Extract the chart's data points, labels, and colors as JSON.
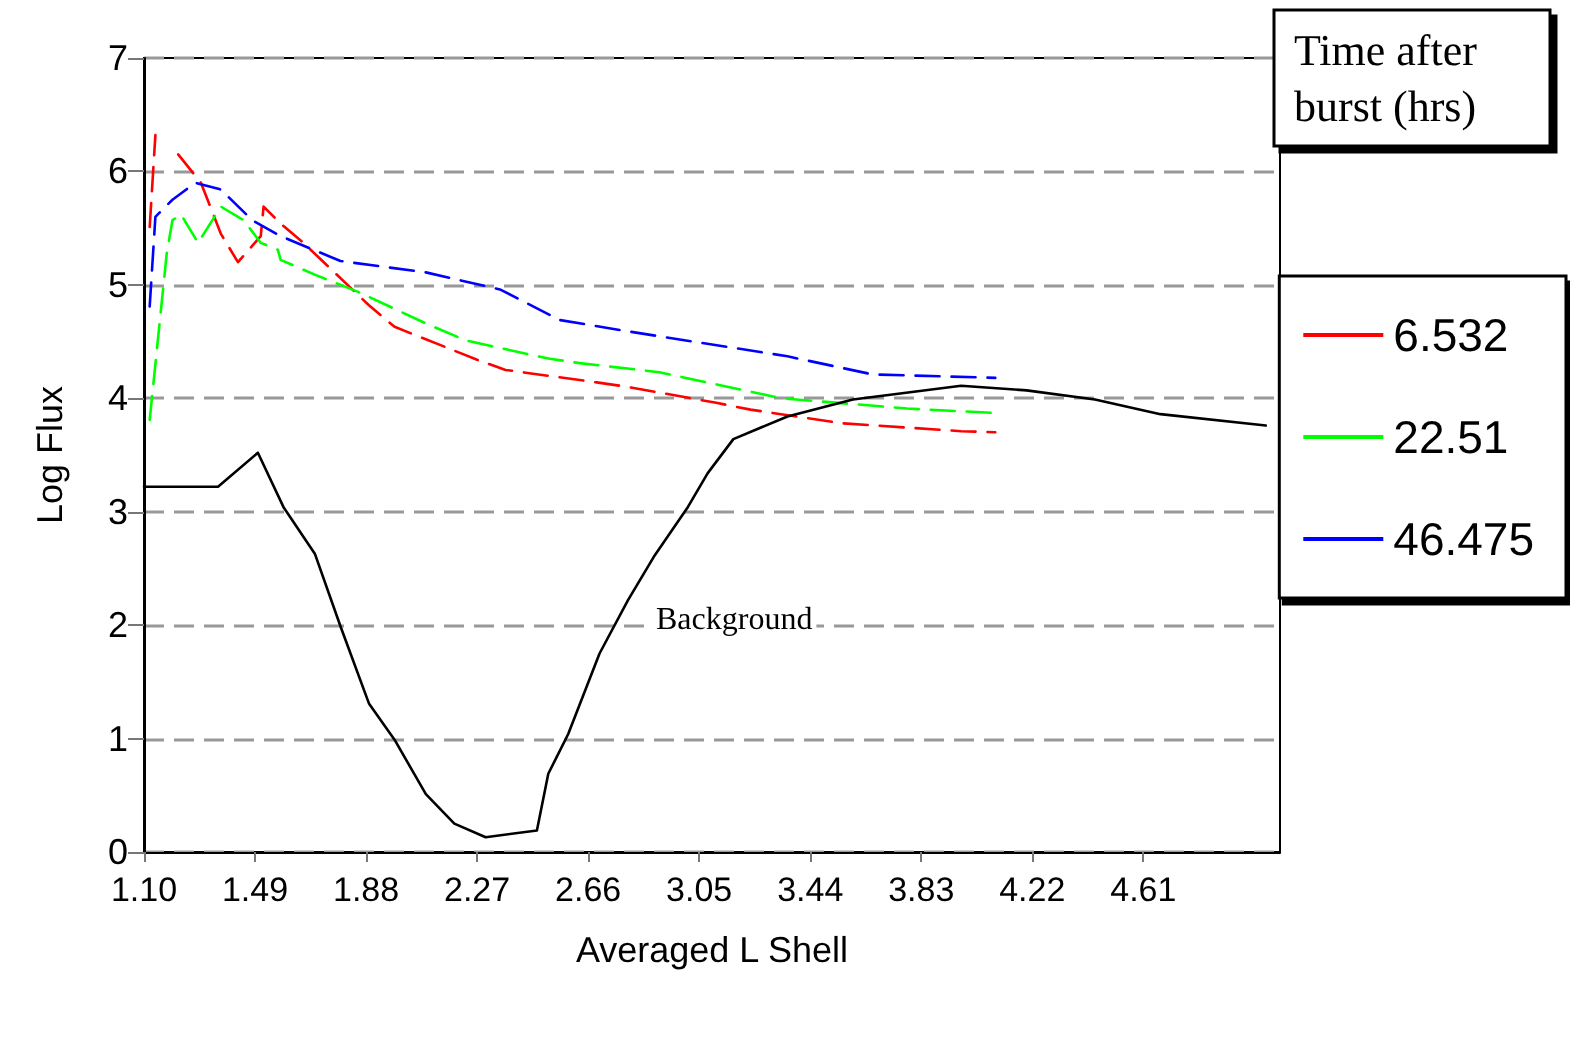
{
  "chart_data": {
    "type": "line",
    "xlabel": "Averaged L Shell",
    "ylabel": "Log Flux",
    "legend_title": "Time after burst (hrs)",
    "xlim": [
      1.1,
      5.09
    ],
    "xticks": [
      {
        "value": 1.1,
        "label": "1.10"
      },
      1.49,
      1.88,
      2.27,
      2.66,
      3.05,
      3.44,
      3.83,
      4.22,
      4.61
    ],
    "ylim": [
      0,
      7
    ],
    "yticks": [
      0,
      1,
      2,
      3,
      4,
      5,
      6,
      7
    ],
    "grid": "y",
    "legend": "right",
    "marker": "none",
    "annotations": [
      "Background"
    ],
    "series": [
      {
        "name": "6.532",
        "color": "#ff0000",
        "line_style": "dashed",
        "x": [
          1.12,
          1.14,
          null,
          1.22,
          1.3,
          1.37,
          1.43,
          1.51,
          1.52,
          1.58,
          1.66,
          1.89,
          1.98,
          2.27,
          2.37,
          2.69,
          2.8,
          3.11,
          3.23,
          3.55,
          3.97,
          4.09
        ],
        "values": [
          5.51,
          6.32,
          null,
          6.15,
          5.9,
          5.45,
          5.2,
          5.43,
          5.69,
          5.54,
          5.37,
          4.82,
          4.63,
          4.34,
          4.25,
          4.14,
          4.1,
          3.96,
          3.9,
          3.78,
          3.71,
          3.7
        ]
      },
      {
        "name": "22.51",
        "color": "#00ff00",
        "line_style": "dashed",
        "x": [
          1.12,
          1.18,
          1.2,
          1.23,
          1.29,
          1.37,
          1.45,
          1.51,
          1.57,
          1.58,
          1.7,
          1.85,
          2.09,
          2.23,
          2.52,
          2.63,
          2.91,
          3.34,
          3.78,
          4.09
        ],
        "values": [
          3.81,
          5.28,
          5.57,
          5.62,
          5.37,
          5.69,
          5.57,
          5.37,
          5.31,
          5.22,
          5.09,
          4.94,
          4.66,
          4.51,
          4.35,
          4.31,
          4.23,
          4.0,
          3.91,
          3.87
        ]
      },
      {
        "name": "46.475",
        "color": "#0000ff",
        "line_style": "dashed",
        "x": [
          1.12,
          1.14,
          1.2,
          1.28,
          1.37,
          1.48,
          1.58,
          1.79,
          2.09,
          2.35,
          2.56,
          2.8,
          3.36,
          3.66,
          4.09
        ],
        "values": [
          4.81,
          5.6,
          5.75,
          5.9,
          5.84,
          5.57,
          5.43,
          5.21,
          5.11,
          4.96,
          4.69,
          4.59,
          4.37,
          4.21,
          4.18
        ]
      },
      {
        "color": "#000000",
        "line_style": "solid",
        "x": [
          1.1,
          1.36,
          1.5,
          1.59,
          1.7,
          1.79,
          1.89,
          1.98,
          2.09,
          2.19,
          2.3,
          2.48,
          2.52,
          2.59,
          2.7,
          2.8,
          2.89,
          3.01,
          3.08,
          3.17,
          3.36,
          3.59,
          3.97,
          4.2,
          4.44,
          4.67,
          5.04
        ],
        "values": [
          3.22,
          3.22,
          3.52,
          3.04,
          2.63,
          1.99,
          1.31,
          0.99,
          0.51,
          0.25,
          0.13,
          0.19,
          0.69,
          1.04,
          1.75,
          2.22,
          2.6,
          3.04,
          3.34,
          3.64,
          3.84,
          3.99,
          4.11,
          4.07,
          3.99,
          3.86,
          3.76
        ]
      }
    ]
  }
}
